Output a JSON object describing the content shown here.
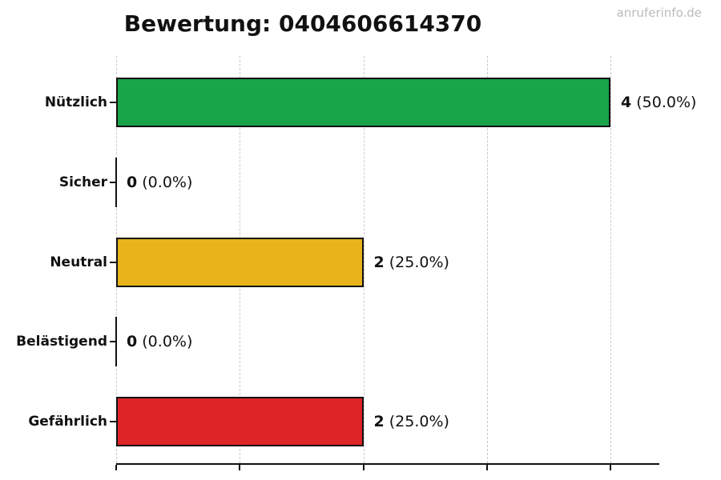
{
  "chart_data": {
    "type": "bar",
    "orientation": "horizontal",
    "title": "Bewertung: 0404606614370",
    "watermark": "anruferinfo.de",
    "categories": [
      "Nützlich",
      "Sicher",
      "Neutral",
      "Belästigend",
      "Gefährlich"
    ],
    "values": [
      4,
      0,
      2,
      0,
      2
    ],
    "percentages": [
      "50.0%",
      "0.0%",
      "25.0%",
      "0.0%",
      "25.0%"
    ],
    "value_labels": [
      "4 (50.0%)",
      "0 (0.0%)",
      "2 (25.0%)",
      "0 (0.0%)",
      "2 (25.0%)"
    ],
    "bar_colors": [
      "#18A449",
      null,
      "#E9B31B",
      null,
      "#DF2427"
    ],
    "bar_edge_color": "#111111",
    "xlim": [
      0,
      4.4
    ],
    "grid": true,
    "grid_values": [
      0,
      1,
      2,
      3,
      4
    ],
    "grid_color": "#c9c9c9",
    "grid_style": "dashed",
    "x_tick_labels_visible": false,
    "legend": false,
    "background_color": "#ffffff",
    "watermark_color": "#bbbbbb"
  }
}
